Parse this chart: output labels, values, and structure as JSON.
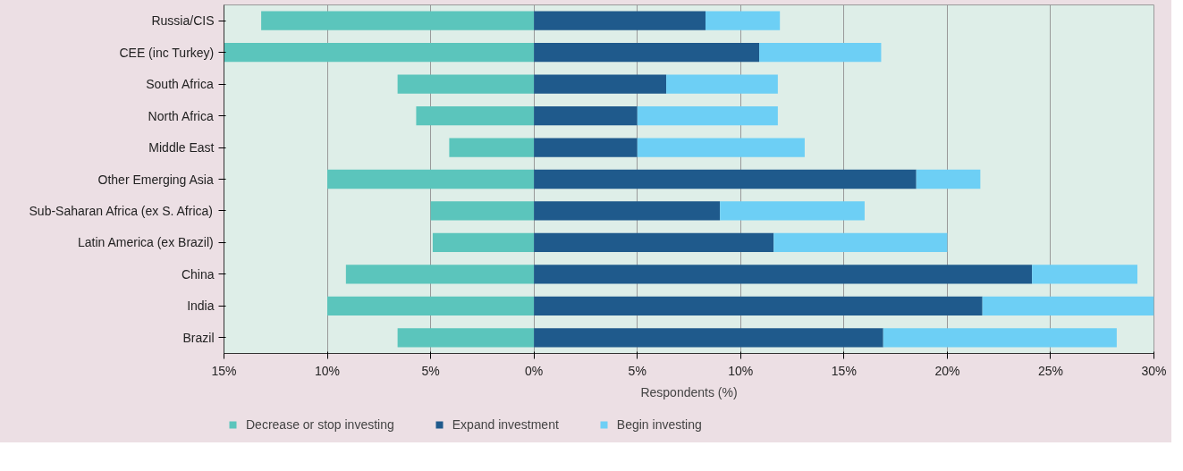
{
  "chart_data": {
    "type": "bar",
    "orientation": "horizontal",
    "stacked": true,
    "categories": [
      "Russia/CIS",
      "CEE (inc Turkey)",
      "South Africa",
      "North Africa",
      "Middle East",
      "Other Emerging Asia",
      "Sub-Saharan Africa (ex S. Africa)",
      "Latin America (ex Brazil)",
      "China",
      "India",
      "Brazil"
    ],
    "series": [
      {
        "name": "Decrease or stop investing",
        "color": "#5bc5bc",
        "values": [
          -13.2,
          -15.0,
          -6.6,
          -5.7,
          -4.1,
          -10.0,
          -5.0,
          -4.9,
          -9.1,
          -10.0,
          -6.6
        ]
      },
      {
        "name": "Expand investment",
        "color": "#1f5a8c",
        "values": [
          8.3,
          10.9,
          6.4,
          5.0,
          5.0,
          18.5,
          9.0,
          11.6,
          24.1,
          21.7,
          16.9
        ]
      },
      {
        "name": "Begin investing",
        "color": "#6dcff5",
        "values": [
          3.6,
          5.9,
          5.4,
          6.8,
          8.1,
          3.1,
          7.0,
          8.4,
          5.1,
          8.3,
          11.3
        ]
      }
    ],
    "xlim": [
      -15,
      30
    ],
    "xticks": [
      {
        "value": -15,
        "label": "15%"
      },
      {
        "value": -10,
        "label": "10%"
      },
      {
        "value": -5,
        "label": "5%"
      },
      {
        "value": 0,
        "label": "0%"
      },
      {
        "value": 5,
        "label": "5%"
      },
      {
        "value": 10,
        "label": "10%"
      },
      {
        "value": 15,
        "label": "15%"
      },
      {
        "value": 20,
        "label": "20%"
      },
      {
        "value": 25,
        "label": "25%"
      },
      {
        "value": 30,
        "label": "30%"
      }
    ],
    "xlabel": "Respondents (%)",
    "grid": "x",
    "legend": "bottom"
  }
}
